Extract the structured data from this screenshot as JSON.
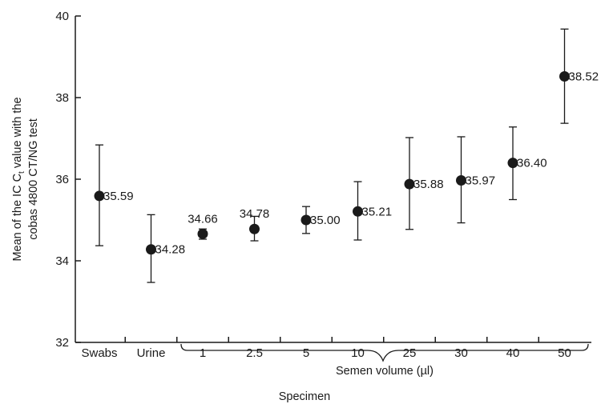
{
  "chart_data": {
    "type": "scatter",
    "ylabel_line1": "Mean of the IC C",
    "ylabel_sub": "t",
    "ylabel_line1_tail": " value with the",
    "ylabel_line2": "cobas  4800 CT/NG test",
    "xlabel": "Specimen",
    "group_label": "Semen volume (µl)",
    "ylim": [
      32,
      40
    ],
    "yticks": [
      32,
      34,
      36,
      38,
      40
    ],
    "categories": [
      "Swabs",
      "Urine",
      "1",
      "2.5",
      "5",
      "10",
      "25",
      "30",
      "40",
      "50"
    ],
    "values": [
      35.59,
      34.28,
      34.66,
      34.78,
      35.0,
      35.21,
      35.88,
      35.97,
      36.4,
      38.52
    ],
    "value_labels": [
      "35.59",
      "34.28",
      "34.66",
      "34.78",
      "35.00",
      "35.21",
      "35.88",
      "35.97",
      "36.40",
      "38.52"
    ],
    "error_low": [
      34.37,
      33.47,
      34.53,
      34.49,
      34.67,
      34.51,
      34.77,
      34.93,
      35.5,
      37.37
    ],
    "error_high": [
      36.84,
      35.13,
      34.78,
      35.09,
      35.33,
      35.94,
      37.02,
      37.04,
      37.28,
      39.68
    ],
    "grid": false,
    "legend": "none"
  }
}
